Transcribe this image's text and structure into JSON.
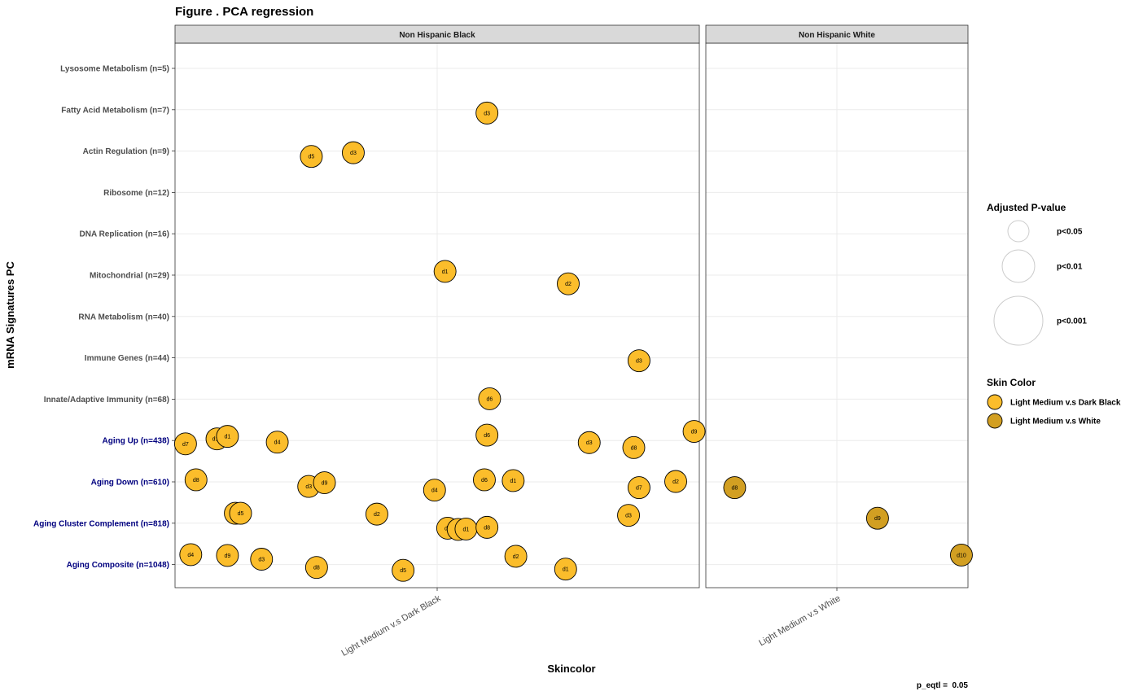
{
  "chart_data": {
    "type": "scatter",
    "title": "Figure . PCA regression",
    "xlabel": "Skincolor",
    "ylabel": "mRNA Signatures PC",
    "caption": "p_eqtl =  0.05",
    "grid": true,
    "legend_position": "right",
    "facets": [
      "Non Hispanic Black",
      "Non Hispanic White"
    ],
    "x_categories": {
      "Non Hispanic Black": "Light Medium v.s Dark Black",
      "Non Hispanic White": "Light Medium v.s White"
    },
    "y_categories": [
      {
        "label": "Lysosome Metabolism (n=5)",
        "highlight": false
      },
      {
        "label": "Fatty Acid Metabolism (n=7)",
        "highlight": false
      },
      {
        "label": "Actin Regulation (n=9)",
        "highlight": false
      },
      {
        "label": "Ribosome (n=12)",
        "highlight": false
      },
      {
        "label": "DNA Replication (n=16)",
        "highlight": false
      },
      {
        "label": "Mitochondrial (n=29)",
        "highlight": false
      },
      {
        "label": "RNA Metabolism (n=40)",
        "highlight": false
      },
      {
        "label": "Immune Genes (n=44)",
        "highlight": false
      },
      {
        "label": "Innate/Adaptive Immunity (n=68)",
        "highlight": false
      },
      {
        "label": "Aging Up (n=438)",
        "highlight": true
      },
      {
        "label": "Aging Down (n=610)",
        "highlight": true
      },
      {
        "label": "Aging Cluster Complement (n=818)",
        "highlight": true
      },
      {
        "label": "Aging Composite (n=1048)",
        "highlight": true
      }
    ],
    "x_jitter_range": [
      -1,
      1
    ],
    "y_jitter_range": [
      -0.5,
      0.5
    ],
    "points": [
      {
        "facet": 0,
        "cat": 1,
        "jx": 0.19,
        "jy": 0.08,
        "label": "d3",
        "group": 0
      },
      {
        "facet": 0,
        "cat": 2,
        "jx": -0.48,
        "jy": 0.13,
        "label": "d5",
        "group": 0
      },
      {
        "facet": 0,
        "cat": 2,
        "jx": -0.32,
        "jy": 0.04,
        "label": "d3",
        "group": 0
      },
      {
        "facet": 0,
        "cat": 5,
        "jx": 0.5,
        "jy": 0.21,
        "label": "d2",
        "group": 0
      },
      {
        "facet": 0,
        "cat": 5,
        "jx": 0.03,
        "jy": -0.09,
        "label": "d1",
        "group": 0
      },
      {
        "facet": 0,
        "cat": 7,
        "jx": 0.77,
        "jy": 0.07,
        "label": "d3",
        "group": 0
      },
      {
        "facet": 0,
        "cat": 8,
        "jx": 0.2,
        "jy": -0.01,
        "label": "d6",
        "group": 0
      },
      {
        "facet": 0,
        "cat": 9,
        "jx": -0.96,
        "jy": 0.08,
        "label": "d7",
        "group": 0
      },
      {
        "facet": 0,
        "cat": 9,
        "jx": -0.84,
        "jy": -0.04,
        "label": "d10",
        "group": 0
      },
      {
        "facet": 0,
        "cat": 9,
        "jx": -0.8,
        "jy": -0.1,
        "label": "d1",
        "group": 0
      },
      {
        "facet": 0,
        "cat": 9,
        "jx": -0.61,
        "jy": 0.04,
        "label": "d4",
        "group": 0
      },
      {
        "facet": 0,
        "cat": 9,
        "jx": 0.19,
        "jy": -0.13,
        "label": "d6",
        "group": 0
      },
      {
        "facet": 0,
        "cat": 9,
        "jx": 0.58,
        "jy": 0.05,
        "label": "d3",
        "group": 0
      },
      {
        "facet": 0,
        "cat": 9,
        "jx": 0.75,
        "jy": 0.17,
        "label": "d8",
        "group": 0
      },
      {
        "facet": 0,
        "cat": 9,
        "jx": 0.98,
        "jy": -0.22,
        "label": "d9",
        "group": 0
      },
      {
        "facet": 0,
        "cat": 10,
        "jx": 0.77,
        "jy": 0.14,
        "label": "d7",
        "group": 0
      },
      {
        "facet": 0,
        "cat": 10,
        "jx": -0.92,
        "jy": -0.05,
        "label": "d8",
        "group": 0
      },
      {
        "facet": 0,
        "cat": 10,
        "jx": -0.49,
        "jy": 0.11,
        "label": "d3",
        "group": 0
      },
      {
        "facet": 0,
        "cat": 10,
        "jx": -0.43,
        "jy": 0.02,
        "label": "d9",
        "group": 0
      },
      {
        "facet": 0,
        "cat": 10,
        "jx": -0.01,
        "jy": 0.2,
        "label": "d4",
        "group": 0
      },
      {
        "facet": 0,
        "cat": 10,
        "jx": 0.18,
        "jy": -0.05,
        "label": "d6",
        "group": 0
      },
      {
        "facet": 0,
        "cat": 10,
        "jx": 0.29,
        "jy": -0.03,
        "label": "d1",
        "group": 0
      },
      {
        "facet": 0,
        "cat": 10,
        "jx": 0.91,
        "jy": -0.01,
        "label": "d2",
        "group": 0
      },
      {
        "facet": 0,
        "cat": 11,
        "jx": 0.04,
        "jy": 0.12,
        "label": "d4",
        "group": 0
      },
      {
        "facet": 0,
        "cat": 11,
        "jx": 0.08,
        "jy": 0.15,
        "label": "d7",
        "group": 0
      },
      {
        "facet": 0,
        "cat": 11,
        "jx": 0.11,
        "jy": 0.14,
        "label": "d1",
        "group": 0
      },
      {
        "facet": 0,
        "cat": 11,
        "jx": 0.19,
        "jy": 0.1,
        "label": "d8",
        "group": 0
      },
      {
        "facet": 0,
        "cat": 11,
        "jx": -0.77,
        "jy": -0.24,
        "label": "d6",
        "group": 0
      },
      {
        "facet": 0,
        "cat": 11,
        "jx": -0.75,
        "jy": -0.24,
        "label": "d5",
        "group": 0
      },
      {
        "facet": 0,
        "cat": 11,
        "jx": -0.23,
        "jy": -0.22,
        "label": "d2",
        "group": 0
      },
      {
        "facet": 0,
        "cat": 11,
        "jx": 0.73,
        "jy": -0.19,
        "label": "d3",
        "group": 0
      },
      {
        "facet": 0,
        "cat": 12,
        "jx": -0.94,
        "jy": -0.24,
        "label": "d4",
        "group": 0
      },
      {
        "facet": 0,
        "cat": 12,
        "jx": -0.8,
        "jy": -0.22,
        "label": "d9",
        "group": 0
      },
      {
        "facet": 0,
        "cat": 12,
        "jx": -0.67,
        "jy": -0.13,
        "label": "d3",
        "group": 0
      },
      {
        "facet": 0,
        "cat": 12,
        "jx": -0.46,
        "jy": 0.07,
        "label": "d8",
        "group": 0
      },
      {
        "facet": 0,
        "cat": 12,
        "jx": -0.13,
        "jy": 0.14,
        "label": "d5",
        "group": 0
      },
      {
        "facet": 0,
        "cat": 12,
        "jx": 0.3,
        "jy": -0.2,
        "label": "d2",
        "group": 0
      },
      {
        "facet": 0,
        "cat": 12,
        "jx": 0.49,
        "jy": 0.11,
        "label": "d1",
        "group": 0
      },
      {
        "facet": 1,
        "cat": 10,
        "jx": -0.78,
        "jy": 0.14,
        "label": "d8",
        "group": 1
      },
      {
        "facet": 1,
        "cat": 11,
        "jx": 0.31,
        "jy": -0.12,
        "label": "d9",
        "group": 1
      },
      {
        "facet": 1,
        "cat": 12,
        "jx": 0.95,
        "jy": -0.23,
        "label": "d10",
        "group": 1
      }
    ],
    "legend": {
      "size_title": "Adjusted P-value",
      "size_items": [
        {
          "label": "p<0.05",
          "level": 1
        },
        {
          "label": "p<0.01",
          "level": 2
        },
        {
          "label": "p<0.001",
          "level": 3
        }
      ],
      "color_title": "Skin Color",
      "color_items": [
        {
          "label": "Light Medium v.s Dark Black",
          "color": "#fbbd2b"
        },
        {
          "label": "Light Medium v.s White",
          "color": "#d29f22"
        }
      ]
    },
    "colors": {
      "highlight_label": "#00007f",
      "normal_label": "#4d4d4d",
      "strip_fill": "#d9d9d9",
      "grid": "#ebebeb",
      "point_stroke": "#000000"
    }
  }
}
